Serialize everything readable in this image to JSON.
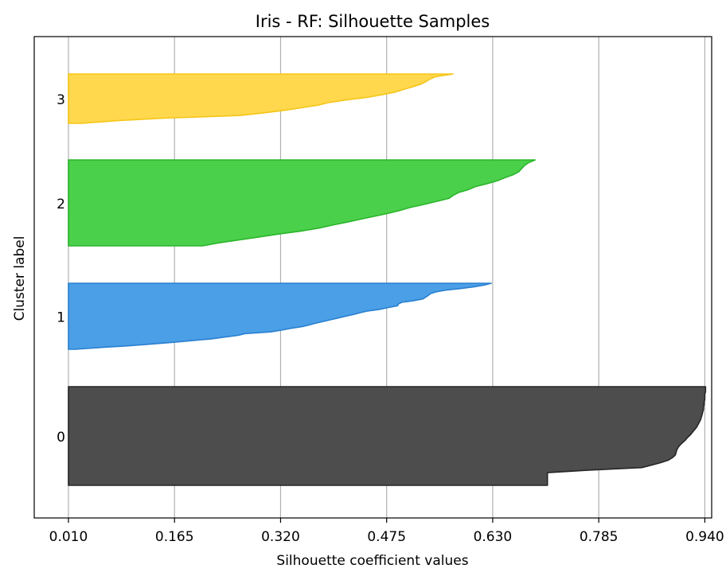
{
  "chart_data": {
    "type": "area",
    "title": "Iris - RF: Silhouette Samples",
    "xlabel": "Silhouette coefficient values",
    "ylabel": "Cluster label",
    "xlim": [
      -0.04,
      0.95
    ],
    "x_ticks": [
      "0.010",
      "0.165",
      "0.320",
      "0.475",
      "0.630",
      "0.785",
      "0.940"
    ],
    "grid": "vertical",
    "clusters": [
      {
        "label": "0",
        "color": "#4d4d4d",
        "edge": "#262626",
        "samples": [
          0.941,
          0.941,
          0.941,
          0.94,
          0.94,
          0.94,
          0.939,
          0.939,
          0.938,
          0.938,
          0.937,
          0.936,
          0.935,
          0.934,
          0.932,
          0.93,
          0.928,
          0.925,
          0.922,
          0.919,
          0.915,
          0.912,
          0.908,
          0.904,
          0.901,
          0.899,
          0.898,
          0.897,
          0.893,
          0.887,
          0.876,
          0.862,
          0.848,
          0.77,
          0.71,
          0.71,
          0.71,
          0.71,
          0.71,
          0.71
        ]
      },
      {
        "label": "1",
        "color": "#4a9fe6",
        "edge": "#2a80d0",
        "samples": [
          0.628,
          0.618,
          0.603,
          0.584,
          0.561,
          0.547,
          0.539,
          0.536,
          0.532,
          0.528,
          0.515,
          0.497,
          0.492,
          0.491,
          0.477,
          0.465,
          0.447,
          0.436,
          0.426,
          0.415,
          0.404,
          0.393,
          0.382,
          0.371,
          0.362,
          0.351,
          0.334,
          0.321,
          0.305,
          0.268,
          0.258,
          0.238,
          0.219,
          0.191,
          0.162,
          0.131,
          0.099,
          0.056,
          0.02
        ]
      },
      {
        "label": "2",
        "color": "#4bd04b",
        "edge": "#2ab52a",
        "samples": [
          0.692,
          0.682,
          0.676,
          0.672,
          0.668,
          0.66,
          0.648,
          0.637,
          0.622,
          0.605,
          0.595,
          0.58,
          0.572,
          0.566,
          0.548,
          0.53,
          0.51,
          0.495,
          0.478,
          0.457,
          0.437,
          0.417,
          0.396,
          0.376,
          0.35,
          0.318,
          0.289,
          0.259,
          0.229,
          0.206
        ]
      },
      {
        "label": "3",
        "color": "#ffd84d",
        "edge": "#f5c518",
        "samples": [
          0.572,
          0.547,
          0.538,
          0.532,
          0.524,
          0.512,
          0.499,
          0.487,
          0.468,
          0.446,
          0.416,
          0.39,
          0.375,
          0.35,
          0.325,
          0.295,
          0.26,
          0.15,
          0.08,
          0.03
        ]
      }
    ]
  }
}
